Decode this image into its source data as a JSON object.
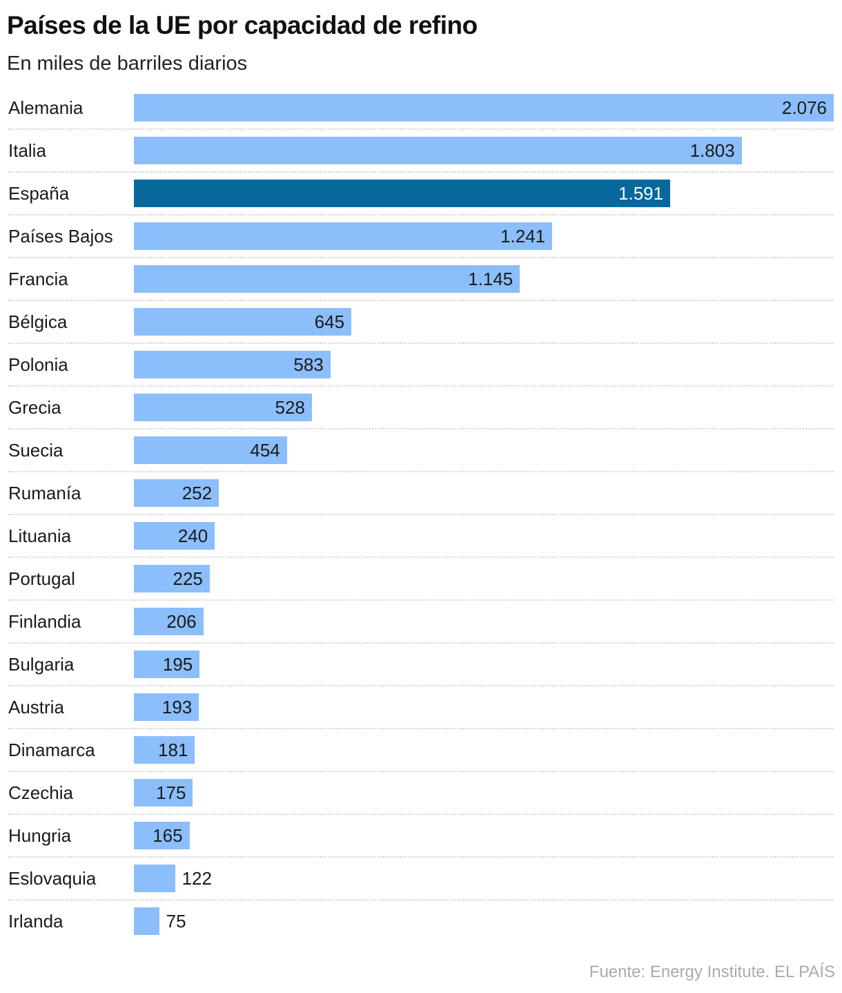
{
  "chart_data": {
    "type": "bar",
    "orientation": "horizontal",
    "title": "Países de la UE por capacidad de refino",
    "subtitle": "En miles de barriles diarios",
    "categories": [
      "Alemania",
      "Italia",
      "España",
      "Países Bajos",
      "Francia",
      "Bélgica",
      "Polonia",
      "Grecia",
      "Suecia",
      "Rumanía",
      "Lituania",
      "Portugal",
      "Finlandia",
      "Bulgaria",
      "Austria",
      "Dinamarca",
      "Czechia",
      "Hungria",
      "Eslovaquia",
      "Irlanda"
    ],
    "values": [
      2076,
      1803,
      1591,
      1241,
      1145,
      645,
      583,
      528,
      454,
      252,
      240,
      225,
      206,
      195,
      193,
      181,
      175,
      165,
      122,
      75
    ],
    "value_labels": [
      "2.076",
      "1.803",
      "1.591",
      "1.241",
      "1.145",
      "645",
      "583",
      "528",
      "454",
      "252",
      "240",
      "225",
      "206",
      "195",
      "193",
      "181",
      "175",
      "165",
      "122",
      "75"
    ],
    "highlight": "España",
    "colors": {
      "default": "#8bbefb",
      "highlight": "#06689b"
    },
    "grid": false,
    "legend": "none",
    "source": "Fuente: Energy Institute. EL PAÍS"
  }
}
